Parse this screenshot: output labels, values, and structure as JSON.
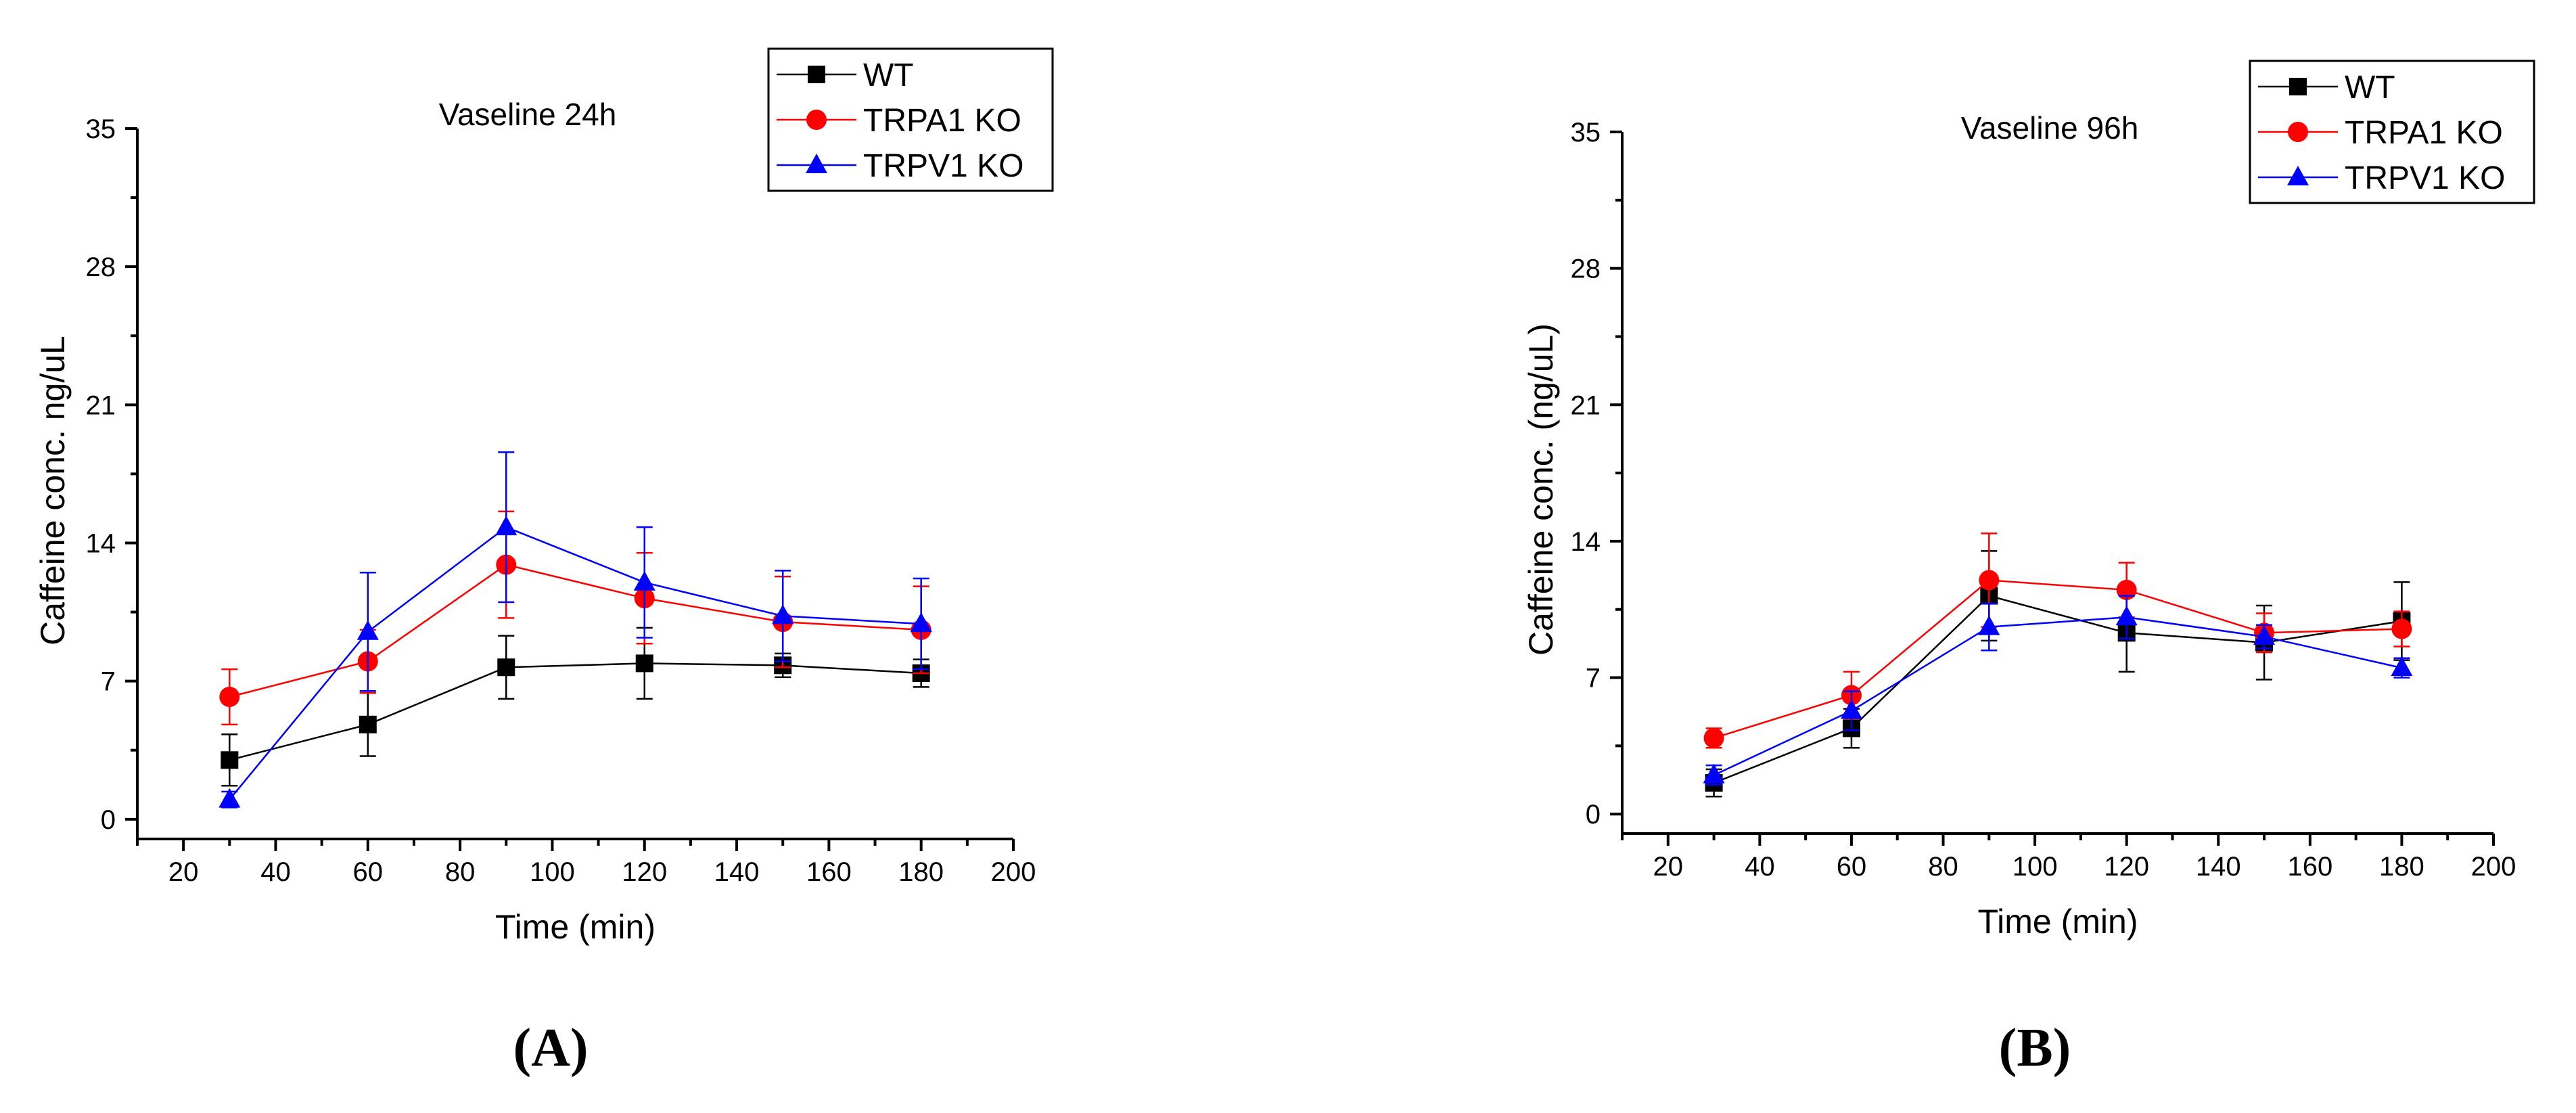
{
  "panel_labels": [
    "(A)",
    "(B)"
  ],
  "chart_data": [
    {
      "type": "line",
      "title": "Vaseline 24h",
      "xlabel": "Time (min)",
      "ylabel": "Caffeine conc. ng/uL",
      "xlim": [
        10,
        200
      ],
      "ylim": [
        -1,
        35
      ],
      "x_ticks": [
        20,
        40,
        60,
        80,
        100,
        120,
        140,
        160,
        180,
        200
      ],
      "y_ticks": [
        0,
        7,
        14,
        21,
        28,
        35
      ],
      "grid": false,
      "legend_position": "top-right",
      "error_bars": true,
      "x": [
        30,
        60,
        90,
        120,
        150,
        180
      ],
      "series": [
        {
          "name": "WT",
          "color": "#000000",
          "marker": "square",
          "values": [
            3.0,
            4.8,
            7.7,
            7.9,
            7.8,
            7.4
          ],
          "errors": [
            1.3,
            1.6,
            1.6,
            1.8,
            0.6,
            0.7
          ]
        },
        {
          "name": "TRPA1 KO",
          "color": "#ff0000",
          "marker": "circle",
          "values": [
            6.2,
            8.0,
            12.9,
            11.2,
            10.0,
            9.6
          ],
          "errors": [
            1.4,
            1.6,
            2.7,
            2.3,
            2.3,
            2.2
          ]
        },
        {
          "name": "TRPV1 KO",
          "color": "#0000ff",
          "marker": "triangle",
          "values": [
            1.0,
            9.5,
            14.8,
            12.0,
            10.3,
            9.9
          ],
          "errors": [
            0.4,
            3.0,
            3.8,
            2.8,
            2.3,
            2.3
          ]
        }
      ]
    },
    {
      "type": "line",
      "title": "Vaseline 96h",
      "xlabel": "Time (min)",
      "ylabel": "Caffeine conc. (ng/uL)",
      "xlim": [
        10,
        200
      ],
      "ylim": [
        -1,
        35
      ],
      "x_ticks": [
        20,
        40,
        60,
        80,
        100,
        120,
        140,
        160,
        180,
        200
      ],
      "y_ticks": [
        0,
        7,
        14,
        21,
        28,
        35
      ],
      "grid": false,
      "legend_position": "top-right",
      "error_bars": true,
      "x": [
        30,
        60,
        90,
        120,
        150,
        180
      ],
      "series": [
        {
          "name": "WT",
          "color": "#000000",
          "marker": "square",
          "values": [
            1.6,
            4.4,
            11.2,
            9.3,
            8.8,
            9.9
          ],
          "errors": [
            0.7,
            1.0,
            2.3,
            2.0,
            1.9,
            2.0
          ]
        },
        {
          "name": "TRPA1 KO",
          "color": "#ff0000",
          "marker": "circle",
          "values": [
            3.9,
            6.1,
            12.0,
            11.5,
            9.3,
            9.5
          ],
          "errors": [
            0.5,
            1.2,
            2.4,
            1.4,
            1.0,
            0.9
          ]
        },
        {
          "name": "TRPV1 KO",
          "color": "#0000ff",
          "marker": "triangle",
          "values": [
            2.0,
            5.3,
            9.6,
            10.1,
            9.1,
            7.5
          ],
          "errors": [
            0.5,
            1.0,
            1.2,
            1.1,
            0.6,
            0.5
          ]
        }
      ]
    }
  ]
}
